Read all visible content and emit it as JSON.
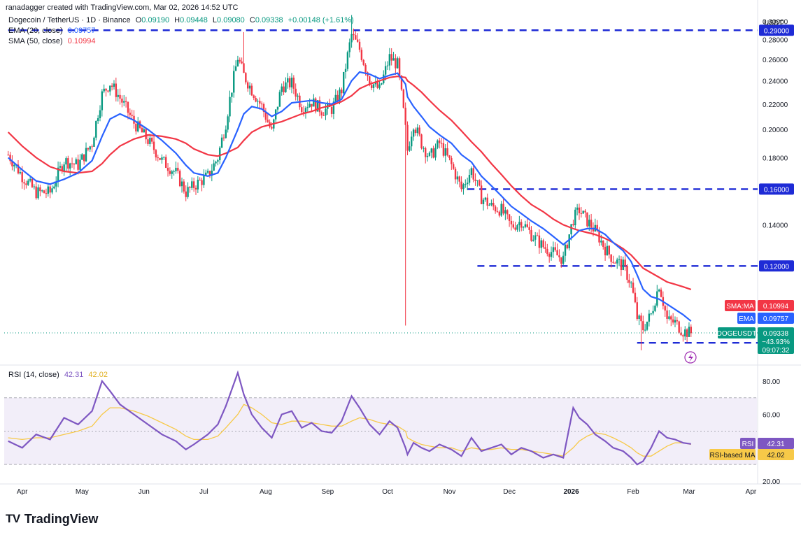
{
  "header": {
    "credit": "ranadagger created with TradingView.com, Mar 02, 2026 14:52 UTC"
  },
  "legend": {
    "symbol": "Dogecoin / TetherUS · 1D · Binance",
    "ohlc": {
      "o_label": "O",
      "o": "0.09190",
      "h_label": "H",
      "h": "0.09448",
      "l_label": "L",
      "l": "0.09080",
      "c_label": "C",
      "c": "0.09338",
      "change": "+0.00148 (+1.61%)"
    },
    "ema": {
      "label": "EMA (20, close)",
      "value": "0.09757",
      "color": "#2962ff"
    },
    "sma": {
      "label": "SMA (50, close)",
      "value": "0.10994",
      "color": "#f23645"
    },
    "rsi": {
      "label": "RSI (14, close)",
      "value": "42.31",
      "ma_value": "42.02",
      "color": "#7e57c2",
      "ma_color": "#f7c948"
    }
  },
  "price_axis": {
    "currency": "USDT",
    "ticks": [
      "0.30000",
      "0.28000",
      "0.26000",
      "0.24000",
      "0.22000",
      "0.20000",
      "0.18000",
      "0.14000"
    ],
    "levels": [
      {
        "label": "0.29000",
        "value": 0.29,
        "start": "2025-03-25"
      },
      {
        "label": "0.16000",
        "value": 0.16,
        "start": "2025-11-10"
      },
      {
        "label": "0.12000",
        "value": 0.12,
        "start": "2025-11-15"
      },
      {
        "label": "0.09000",
        "value": 0.09,
        "start": "2026-02-03"
      }
    ],
    "badges": [
      {
        "name": "SMA:MA",
        "value": "0.10994",
        "color": "#f23645"
      },
      {
        "name": "EMA",
        "value": "0.09757",
        "color": "#2962ff"
      }
    ],
    "current": {
      "name": "DOGEUSDT",
      "price": "0.09338",
      "change": "−43.93%",
      "countdown": "09:07:32",
      "color": "#089981"
    }
  },
  "rsi_axis": {
    "ticks": [
      "80.00",
      "60.00",
      "20.00"
    ],
    "badges": [
      {
        "name": "RSI",
        "value": "42.31",
        "color": "#7e57c2"
      },
      {
        "name": "RSI-based MA",
        "value": "42.02",
        "color": "#f7c948"
      }
    ]
  },
  "time_axis": {
    "labels": [
      "Apr",
      "May",
      "Jun",
      "Jul",
      "Aug",
      "Sep",
      "Oct",
      "Nov",
      "Dec",
      "2026",
      "Feb",
      "Mar",
      "Apr"
    ]
  },
  "brand": {
    "name": "TradingView",
    "logo": "TV"
  },
  "chart_data": {
    "type": "line",
    "title": "Dogecoin / TetherUS · 1D · Binance",
    "x_range": [
      "2025-03-25",
      "2026-03-02"
    ],
    "price_ylim": [
      0.085,
      0.305
    ],
    "price_scale": "log",
    "x": [
      "2025-03-25",
      "2025-04-01",
      "2025-04-08",
      "2025-04-15",
      "2025-04-22",
      "2025-04-29",
      "2025-05-06",
      "2025-05-11",
      "2025-05-15",
      "2025-05-20",
      "2025-05-27",
      "2025-06-03",
      "2025-06-10",
      "2025-06-17",
      "2025-06-22",
      "2025-06-26",
      "2025-07-03",
      "2025-07-08",
      "2025-07-12",
      "2025-07-18",
      "2025-07-21",
      "2025-07-25",
      "2025-07-30",
      "2025-08-04",
      "2025-08-09",
      "2025-08-14",
      "2025-08-19",
      "2025-08-24",
      "2025-08-29",
      "2025-09-03",
      "2025-09-08",
      "2025-09-13",
      "2025-09-17",
      "2025-09-22",
      "2025-09-27",
      "2025-10-02",
      "2025-10-06",
      "2025-10-10",
      "2025-10-11",
      "2025-10-14",
      "2025-10-18",
      "2025-10-22",
      "2025-10-27",
      "2025-11-02",
      "2025-11-07",
      "2025-11-12",
      "2025-11-17",
      "2025-11-22",
      "2025-11-27",
      "2025-12-02",
      "2025-12-07",
      "2025-12-12",
      "2025-12-18",
      "2025-12-23",
      "2025-12-28",
      "2026-01-02",
      "2026-01-05",
      "2026-01-09",
      "2026-01-13",
      "2026-01-18",
      "2026-01-22",
      "2026-01-27",
      "2026-01-31",
      "2026-02-03",
      "2026-02-06",
      "2026-02-10",
      "2026-02-14",
      "2026-02-18",
      "2026-02-22",
      "2026-02-26",
      "2026-03-02"
    ],
    "series": [
      {
        "name": "DOGEUSDT",
        "color": "#089981",
        "values": [
          0.182,
          0.168,
          0.158,
          0.158,
          0.178,
          0.175,
          0.19,
          0.228,
          0.238,
          0.225,
          0.205,
          0.192,
          0.178,
          0.17,
          0.158,
          0.162,
          0.168,
          0.18,
          0.205,
          0.262,
          0.245,
          0.232,
          0.218,
          0.198,
          0.235,
          0.238,
          0.218,
          0.222,
          0.215,
          0.216,
          0.232,
          0.285,
          0.27,
          0.24,
          0.232,
          0.262,
          0.255,
          0.2,
          0.185,
          0.205,
          0.19,
          0.18,
          0.19,
          0.175,
          0.16,
          0.172,
          0.155,
          0.15,
          0.148,
          0.139,
          0.142,
          0.135,
          0.129,
          0.126,
          0.123,
          0.143,
          0.148,
          0.142,
          0.137,
          0.128,
          0.123,
          0.12,
          0.112,
          0.099,
          0.095,
          0.1,
          0.112,
          0.098,
          0.097,
          0.094,
          0.0934
        ]
      },
      {
        "name": "EMA (20, close)",
        "color": "#2962ff",
        "values": [
          0.18,
          0.172,
          0.165,
          0.163,
          0.166,
          0.17,
          0.178,
          0.195,
          0.208,
          0.212,
          0.207,
          0.2,
          0.192,
          0.183,
          0.175,
          0.17,
          0.168,
          0.17,
          0.18,
          0.2,
          0.212,
          0.218,
          0.216,
          0.21,
          0.214,
          0.221,
          0.222,
          0.223,
          0.221,
          0.22,
          0.224,
          0.24,
          0.248,
          0.246,
          0.242,
          0.245,
          0.247,
          0.237,
          0.226,
          0.218,
          0.21,
          0.202,
          0.196,
          0.19,
          0.182,
          0.177,
          0.168,
          0.162,
          0.156,
          0.15,
          0.146,
          0.142,
          0.138,
          0.134,
          0.13,
          0.134,
          0.137,
          0.138,
          0.138,
          0.135,
          0.131,
          0.127,
          0.122,
          0.116,
          0.11,
          0.107,
          0.106,
          0.104,
          0.102,
          0.1,
          0.0976
        ]
      },
      {
        "name": "SMA (50, close)",
        "color": "#f23645",
        "values": [
          0.198,
          0.188,
          0.18,
          0.174,
          0.171,
          0.17,
          0.171,
          0.176,
          0.182,
          0.188,
          0.193,
          0.196,
          0.195,
          0.193,
          0.19,
          0.186,
          0.182,
          0.181,
          0.183,
          0.187,
          0.192,
          0.198,
          0.202,
          0.204,
          0.206,
          0.209,
          0.212,
          0.214,
          0.217,
          0.219,
          0.222,
          0.227,
          0.233,
          0.237,
          0.24,
          0.243,
          0.244,
          0.243,
          0.24,
          0.236,
          0.23,
          0.223,
          0.215,
          0.207,
          0.199,
          0.191,
          0.184,
          0.176,
          0.169,
          0.162,
          0.156,
          0.151,
          0.147,
          0.143,
          0.14,
          0.138,
          0.137,
          0.136,
          0.135,
          0.133,
          0.131,
          0.128,
          0.125,
          0.122,
          0.119,
          0.117,
          0.115,
          0.113,
          0.112,
          0.111,
          0.1099
        ]
      },
      {
        "name": "RSI (14, close)",
        "color": "#7e57c2",
        "values": [
          44,
          40,
          48,
          45,
          58,
          54,
          62,
          80,
          74,
          66,
          60,
          54,
          48,
          44,
          39,
          42,
          48,
          54,
          65,
          85,
          72,
          60,
          52,
          46,
          60,
          62,
          52,
          55,
          50,
          49,
          56,
          71,
          64,
          54,
          48,
          56,
          52,
          40,
          36,
          43,
          40,
          38,
          42,
          39,
          35,
          46,
          38,
          40,
          42,
          36,
          40,
          38,
          34,
          36,
          34,
          64,
          58,
          54,
          48,
          44,
          40,
          38,
          34,
          30,
          32,
          40,
          50,
          46,
          45,
          43,
          42.31
        ]
      },
      {
        "name": "RSI-based MA",
        "color": "#f7c948",
        "values": [
          46,
          45,
          46,
          46,
          48,
          50,
          53,
          60,
          64,
          64,
          62,
          59,
          55,
          51,
          47,
          45,
          45,
          47,
          52,
          60,
          66,
          64,
          60,
          55,
          54,
          56,
          56,
          55,
          54,
          53,
          53,
          56,
          58,
          57,
          55,
          54,
          53,
          50,
          46,
          44,
          42,
          41,
          40,
          40,
          38,
          40,
          39,
          39,
          40,
          39,
          39,
          38,
          37,
          36,
          35,
          40,
          44,
          47,
          49,
          48,
          46,
          43,
          40,
          37,
          35,
          35,
          38,
          41,
          43,
          43,
          42.02
        ]
      }
    ],
    "rsi_ylim": [
      20,
      85
    ],
    "rsi_band": [
      30,
      70
    ],
    "grid": true
  }
}
